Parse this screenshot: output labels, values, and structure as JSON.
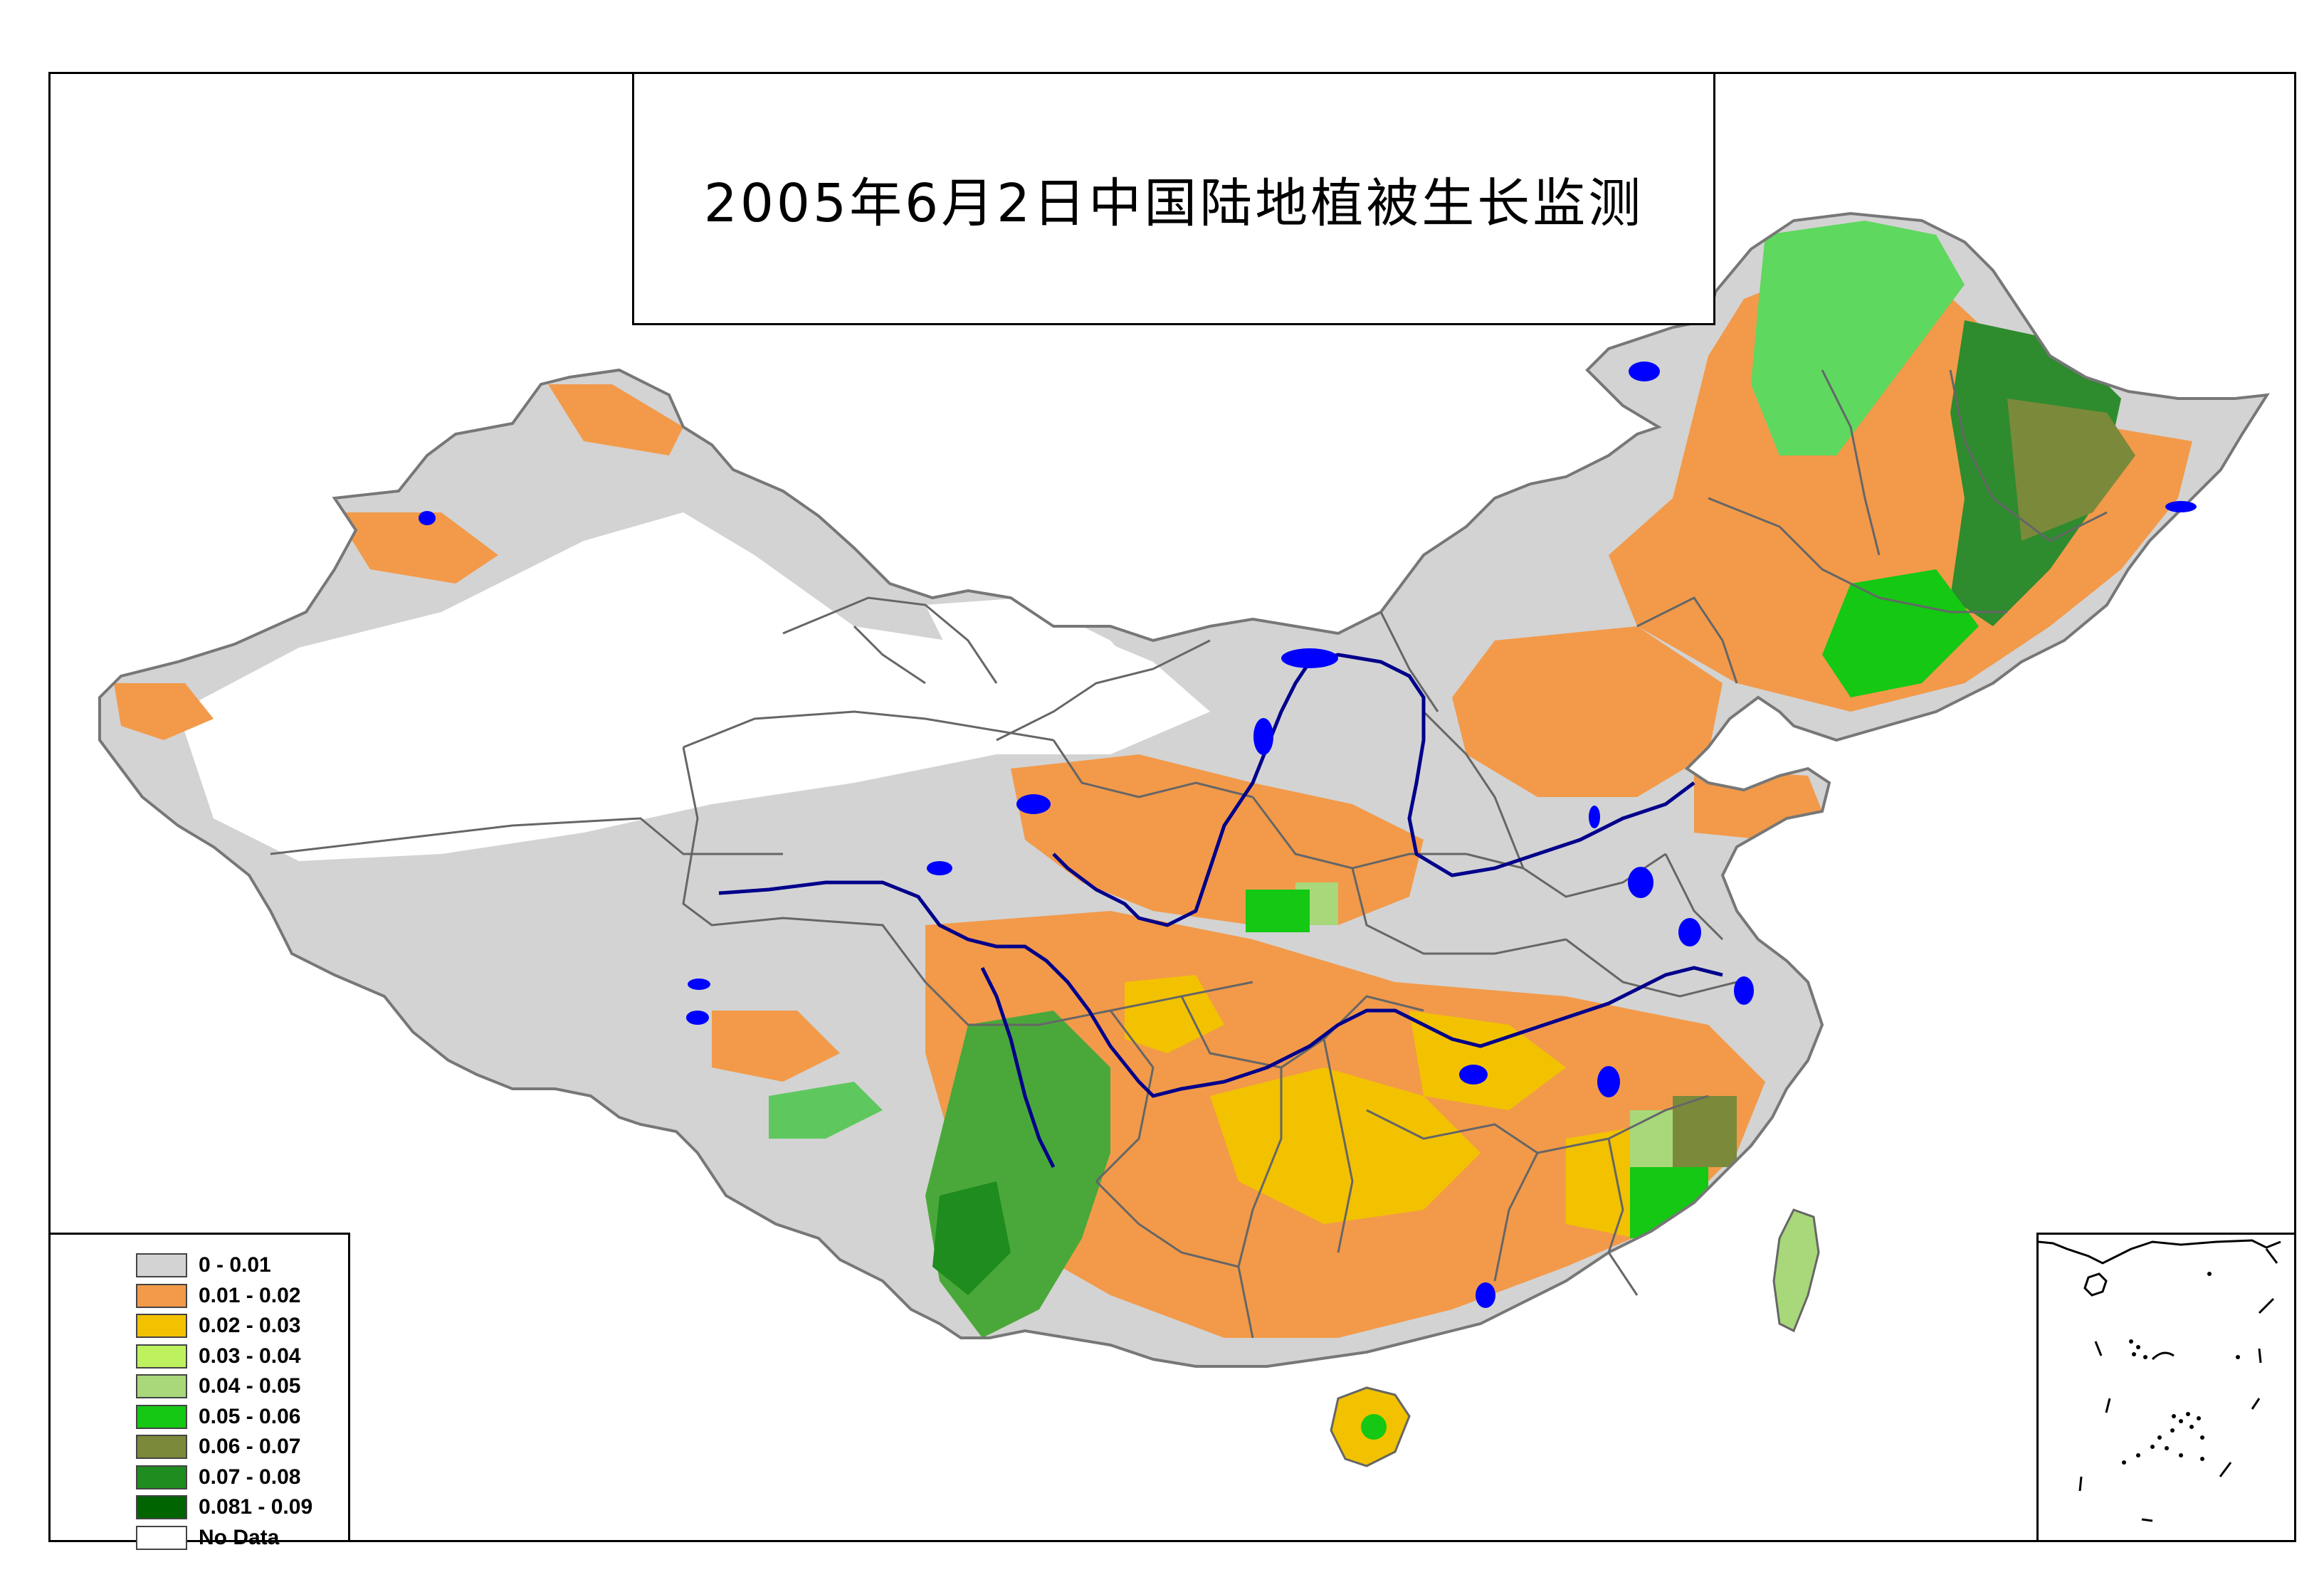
{
  "title": "2005年6月2日中国陆地植被生长监测",
  "legend": {
    "items": [
      {
        "label": "0 - 0.01",
        "color": "#d3d3d3"
      },
      {
        "label": "0.01 - 0.02",
        "color": "#f29a4a"
      },
      {
        "label": "0.02 - 0.03",
        "color": "#f2c200"
      },
      {
        "label": "0.03 - 0.04",
        "color": "#bdf25e"
      },
      {
        "label": "0.04 - 0.05",
        "color": "#a8d87a"
      },
      {
        "label": "0.05 - 0.06",
        "color": "#14c814"
      },
      {
        "label": "0.06 - 0.07",
        "color": "#7a8a3a"
      },
      {
        "label": "0.07 - 0.08",
        "color": "#1e8c1e"
      },
      {
        "label": "0.081 - 0.09",
        "color": "#006400"
      },
      {
        "label": "No Data",
        "color": "#ffffff"
      }
    ]
  },
  "map": {
    "features": {
      "water_color": "#0000ff",
      "river_color": "#00008b",
      "boundary_color": "#666666"
    }
  }
}
